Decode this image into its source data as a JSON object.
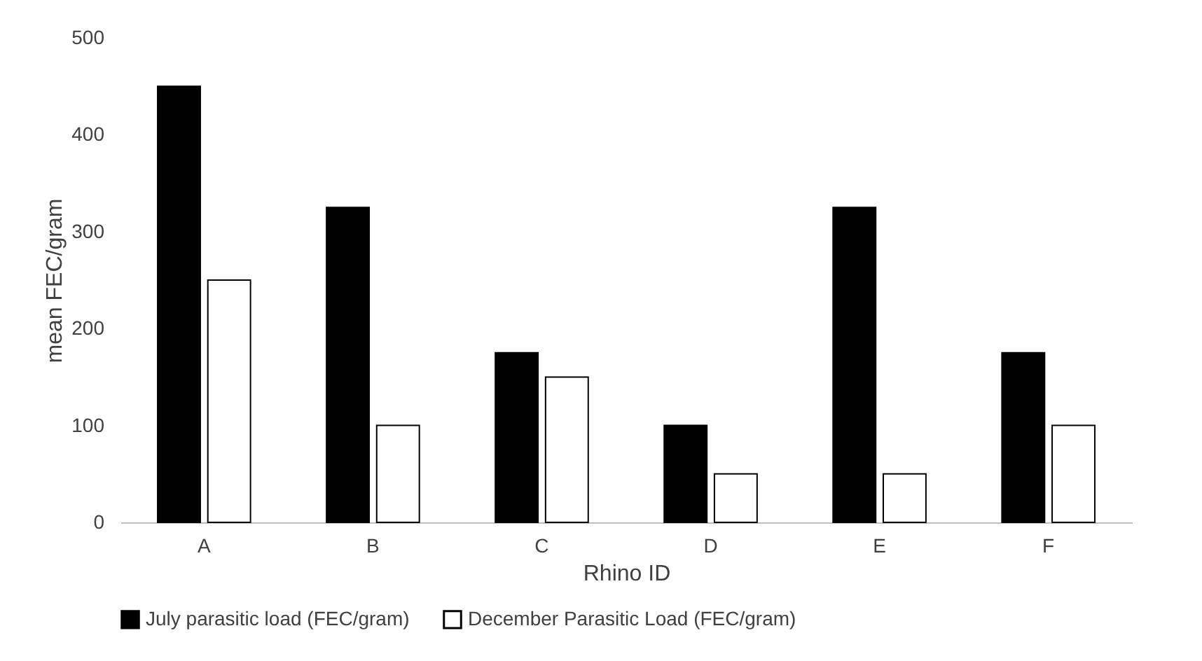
{
  "chart_data": {
    "type": "bar",
    "xlabel": "Rhino ID",
    "ylabel": "mean FEC/gram",
    "categories": [
      "A",
      "B",
      "C",
      "D",
      "E",
      "F"
    ],
    "series": [
      {
        "name": "July parasitic load (FEC/gram)",
        "color": "#000000",
        "values": [
          450,
          325,
          175,
          100,
          325,
          175
        ]
      },
      {
        "name": "December Parasitic Load (FEC/gram)",
        "color": "#ffffff",
        "values": [
          250,
          100,
          150,
          50,
          50,
          100
        ]
      }
    ],
    "ylim": [
      0,
      500
    ],
    "yticks": [
      0,
      100,
      200,
      300,
      400,
      500
    ],
    "grid": false,
    "legend": "bottom"
  }
}
